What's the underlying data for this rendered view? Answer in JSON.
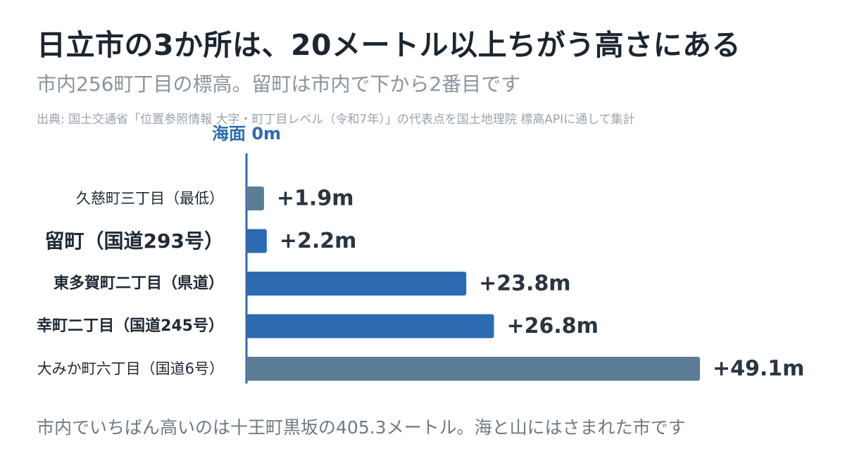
{
  "title": "日立市の3か所は、20メートル以上ちがう高さにある",
  "subtitle": "市内256町丁目の標高。留町は市内で下から2番目です",
  "source": "出典: 国土交通省「位置参照情報 大字・町丁目レベル（令和7年）」の代表点を国土地理院 標高APIに通して集計",
  "footer": "市内でいちばん高いのは十王町黒坂の405.3メートル。海と山にはさまれた市です",
  "colors": {
    "highlight": "#2c6bb2",
    "muted": "#5b7d96",
    "axis": "#2c6bb2",
    "axis_label": "#2c6bb2"
  },
  "chart_data": {
    "type": "bar",
    "orientation": "horizontal",
    "axis_label": "海面 0m",
    "categories": [
      "久慈町三丁目（最低）",
      "留町（国道293号）",
      "東多賀町二丁目（県道）",
      "幸町二丁目（国道245号）",
      "大みか町六丁目（国道6号）"
    ],
    "values": [
      1.9,
      2.2,
      23.8,
      26.8,
      49.1
    ],
    "value_labels": [
      "+1.9m",
      "+2.2m",
      "+23.8m",
      "+26.8m",
      "+49.1m"
    ],
    "bar_colors": [
      "muted",
      "highlight",
      "highlight",
      "highlight",
      "muted"
    ],
    "category_styles": [
      "normal",
      "emphasis",
      "bold",
      "bold",
      "normal"
    ],
    "xlim": [
      0,
      49.1
    ],
    "grid": false
  }
}
